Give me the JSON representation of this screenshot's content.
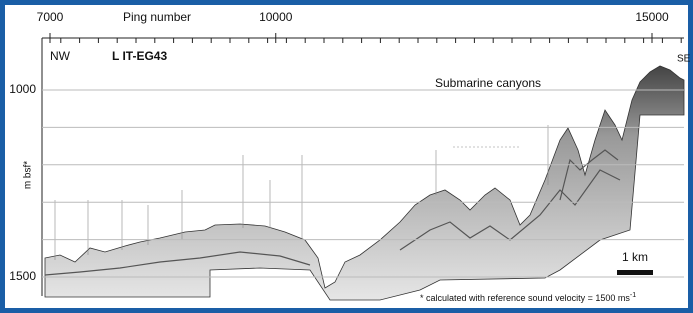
{
  "figure": {
    "top_axis": {
      "label": "Ping number",
      "ticks": [
        7000,
        10000,
        15000
      ]
    },
    "left_axis": {
      "label": "m bsf*",
      "ticks": [
        1000,
        1500
      ]
    },
    "annotations": {
      "left_end": "NW",
      "line_name": "L IT-EG43",
      "right_end": "SE",
      "feature": "Submarine canyons",
      "scale_bar": "1 km"
    },
    "footnote": "* calculated with reference sound velocity = 1500 ms",
    "footnote_superscript": "-1"
  }
}
